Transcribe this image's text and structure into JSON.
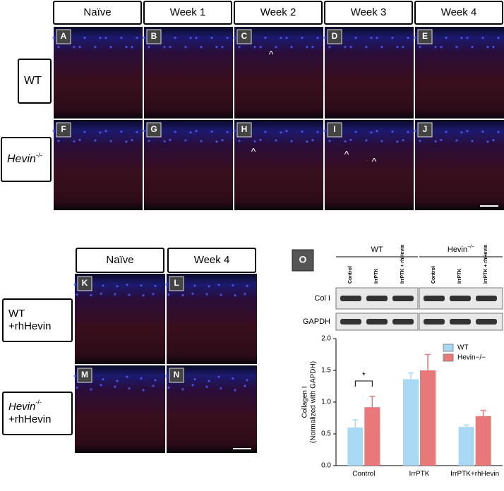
{
  "figure_top": {
    "columns": [
      "Naïve",
      "Week 1",
      "Week 2",
      "Week 3",
      "Week 4"
    ],
    "rows": [
      {
        "label": "WT"
      },
      {
        "label": "Hevin",
        "superscript": "-/-"
      }
    ],
    "panels": [
      [
        "A",
        "B",
        "C",
        "D",
        "E"
      ],
      [
        "F",
        "G",
        "H",
        "I",
        "J"
      ]
    ],
    "arrowhead": "^"
  },
  "figure_bottom": {
    "columns": [
      "Naïve",
      "Week 4"
    ],
    "rows": [
      {
        "label": "WT",
        "sub": "+rhHevin"
      },
      {
        "label": "Hevin",
        "superscript": "-/-",
        "sub": "+rhHevin"
      }
    ],
    "panels": [
      [
        "K",
        "L"
      ],
      [
        "M",
        "N"
      ]
    ]
  },
  "blot": {
    "panel": "O",
    "groups": [
      {
        "label": "WT",
        "lanes": [
          "Control",
          "IrrPTK",
          "IrrPTK + rhHevin"
        ]
      },
      {
        "label": "Hevin",
        "superscript": "−/−",
        "lanes": [
          "Control",
          "IrrPTK",
          "IrrPTK + rhHevin"
        ]
      }
    ],
    "rows": [
      "Col I",
      "GAPDH"
    ]
  },
  "chart_data": {
    "type": "bar",
    "y_label": [
      "Collagen I",
      "(Normalized with GAPDH)"
    ],
    "categories": [
      "Control",
      "IrrPTK",
      "IrrPTK+rhHevin"
    ],
    "series": [
      {
        "name": "WT",
        "color": "#a9d8f5",
        "values": [
          0.6,
          1.36,
          0.61
        ],
        "errors": [
          0.12,
          0.1,
          0.03
        ]
      },
      {
        "name": "Hevin−/−",
        "color": "#e8787a",
        "values": [
          0.92,
          1.5,
          0.78
        ],
        "errors": [
          0.17,
          0.25,
          0.09
        ]
      }
    ],
    "ylim": [
      0,
      2
    ],
    "yticks": [
      {
        "value": 0,
        "label": "0.0"
      },
      {
        "value": 0.5,
        "label": "0.5"
      },
      {
        "value": 1,
        "label": "1.0"
      },
      {
        "value": 1.5,
        "label": "1.5"
      },
      {
        "value": 2,
        "label": "2.0"
      }
    ],
    "significance": "*"
  }
}
